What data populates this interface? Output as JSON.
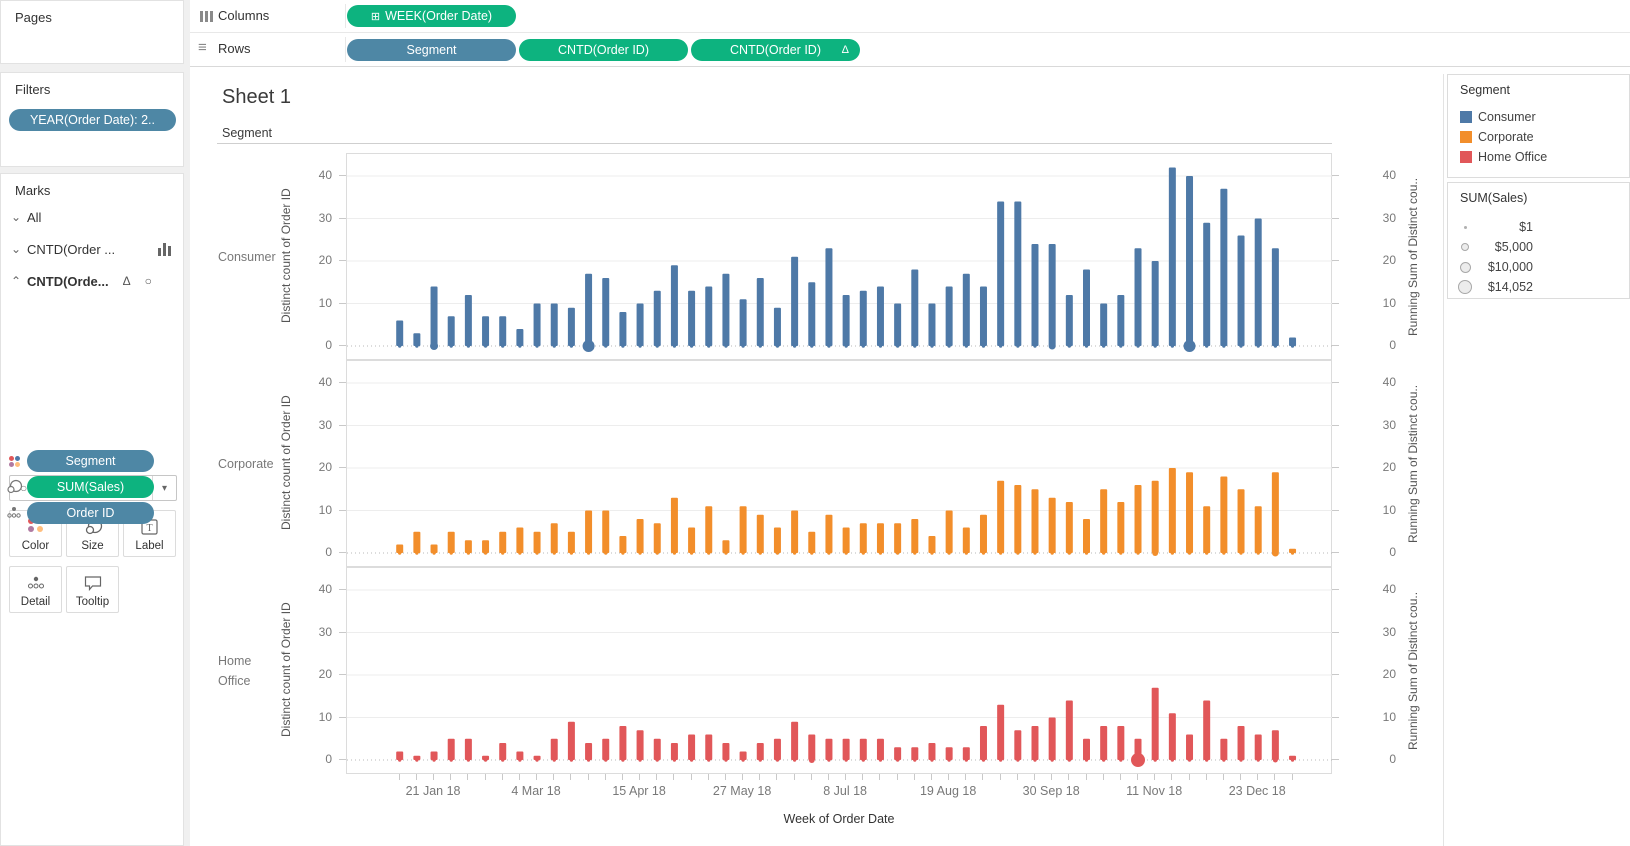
{
  "pages": {
    "title": "Pages"
  },
  "filters": {
    "title": "Filters",
    "pill": "YEAR(Order Date): 2.."
  },
  "shelves": {
    "columns_label": "Columns",
    "rows_label": "Rows",
    "columns_pills": [
      {
        "label": "WEEK(Order Date)",
        "prefix": "⊞",
        "type": "green"
      }
    ],
    "rows_pills": [
      {
        "label": "Segment",
        "type": "blue"
      },
      {
        "label": "CNTD(Order ID)",
        "type": "green"
      },
      {
        "label": "CNTD(Order ID)",
        "type": "green",
        "suffix": "Δ"
      }
    ]
  },
  "marks": {
    "title": "Marks",
    "rows": [
      {
        "label": "All",
        "chevron": "⌄"
      },
      {
        "label": "CNTD(Order ...",
        "chevron": "⌄",
        "icon": "bar-chart"
      },
      {
        "label": "CNTD(Orde...",
        "chevron": "⌃",
        "badges": [
          "Δ",
          "○"
        ]
      }
    ],
    "mark_type": {
      "icon": "○",
      "label": "Circle"
    },
    "buttons": {
      "color": "Color",
      "size": "Size",
      "label": "Label",
      "detail": "Detail",
      "tooltip": "Tooltip"
    },
    "pills": [
      {
        "icon": "color",
        "label": "Segment",
        "type": "blue"
      },
      {
        "icon": "size",
        "label": "SUM(Sales)",
        "type": "green"
      },
      {
        "icon": "detail",
        "label": "Order ID",
        "type": "blue"
      }
    ]
  },
  "sheet": {
    "title": "Sheet 1",
    "column_header": "Segment",
    "row_labels": [
      "Consumer",
      "Corporate",
      "Home Office"
    ],
    "left_axis_title": "Distinct count of Order ID",
    "right_axis_title": "Running Sum of Distinct cou..",
    "x_axis_title": "Week of Order Date",
    "y_ticks": [
      0,
      10,
      20,
      30,
      40
    ]
  },
  "legends": {
    "segment": {
      "title": "Segment",
      "items": [
        {
          "label": "Consumer",
          "color": "#4e79a7"
        },
        {
          "label": "Corporate",
          "color": "#f28e2b"
        },
        {
          "label": "Home Office",
          "color": "#e15759"
        }
      ]
    },
    "size": {
      "title": "SUM(Sales)",
      "items": [
        {
          "label": "$1",
          "r": 1.5
        },
        {
          "label": "$5,000",
          "r": 4
        },
        {
          "label": "$10,000",
          "r": 5.5
        },
        {
          "label": "$14,052",
          "r": 7
        }
      ]
    }
  },
  "chart_data": {
    "type": "bar",
    "title": "Sheet 1",
    "xlabel": "Week of Order Date",
    "ylabel": "Distinct count of Order ID",
    "y2label": "Running Sum of Distinct cou..",
    "ylim": [
      0,
      44
    ],
    "grid": true,
    "n_weeks": 53,
    "x_tick_labels": [
      "21 Jan 18",
      "4 Mar 18",
      "15 Apr 18",
      "27 May 18",
      "8 Jul 18",
      "19 Aug 18",
      "30 Sep 18",
      "11 Nov 18",
      "23 Dec 18"
    ],
    "x_tick_indices": [
      2,
      8,
      14,
      20,
      26,
      32,
      38,
      44,
      50
    ],
    "series": [
      {
        "name": "Consumer",
        "color": "#4e79a7",
        "values": [
          6,
          3,
          14,
          7,
          12,
          7,
          7,
          4,
          10,
          10,
          9,
          17,
          16,
          8,
          10,
          13,
          19,
          13,
          14,
          17,
          11,
          16,
          9,
          21,
          15,
          23,
          12,
          13,
          14,
          10,
          18,
          10,
          14,
          17,
          14,
          34,
          34,
          24,
          24,
          12,
          18,
          10,
          12,
          23,
          20,
          42,
          40,
          29,
          37,
          26,
          30,
          23,
          2
        ],
        "dots": [
          {
            "i": 2,
            "r": 4
          },
          {
            "i": 11,
            "r": 6
          },
          {
            "i": 38,
            "r": 3.5
          },
          {
            "i": 46,
            "r": 6
          }
        ]
      },
      {
        "name": "Corporate",
        "color": "#f28e2b",
        "values": [
          2,
          5,
          2,
          5,
          3,
          3,
          5,
          6,
          5,
          7,
          5,
          10,
          10,
          4,
          8,
          7,
          13,
          6,
          11,
          3,
          11,
          9,
          6,
          10,
          5,
          9,
          6,
          7,
          7,
          7,
          8,
          4,
          10,
          6,
          9,
          17,
          16,
          15,
          13,
          12,
          8,
          15,
          12,
          16,
          17,
          20,
          19,
          11,
          18,
          15,
          11,
          19,
          1
        ],
        "dots": [
          {
            "i": 44,
            "r": 3
          },
          {
            "i": 51,
            "r": 3.5
          }
        ]
      },
      {
        "name": "Home Office",
        "color": "#e15759",
        "values": [
          2,
          1,
          2,
          5,
          5,
          1,
          4,
          2,
          1,
          5,
          9,
          4,
          5,
          8,
          7,
          5,
          4,
          6,
          6,
          4,
          2,
          4,
          5,
          9,
          6,
          5,
          5,
          5,
          5,
          3,
          3,
          4,
          3,
          3,
          8,
          13,
          7,
          8,
          10,
          14,
          5,
          8,
          8,
          5,
          17,
          11,
          6,
          14,
          5,
          8,
          6,
          7,
          1
        ],
        "dots": [
          {
            "i": 24,
            "r": 3
          },
          {
            "i": 43,
            "r": 7
          },
          {
            "i": 51,
            "r": 2.5
          }
        ]
      }
    ]
  }
}
